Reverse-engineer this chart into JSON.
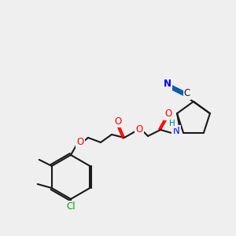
{
  "bg_color": "#efefef",
  "bond_color": "#1a1a1a",
  "atom_colors": {
    "O": "#ff0000",
    "N": "#0000ff",
    "Cl": "#00aa00",
    "C_label": "#1a1a1a",
    "H": "#008080",
    "CN_blue": "#0055aa"
  },
  "figsize": [
    3.0,
    3.0
  ],
  "dpi": 100
}
